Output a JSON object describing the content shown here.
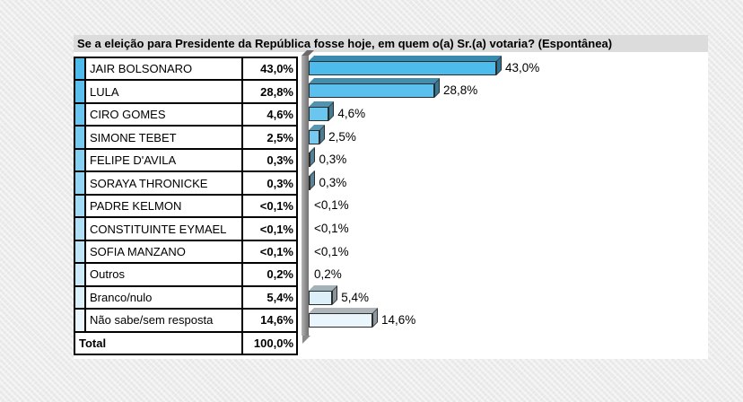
{
  "title": "Se a eleição para Presidente da República fosse hoje, em quem o(a) Sr.(a) votaria? (Espontânea)",
  "colors": {
    "background": "#ececec",
    "title_bar_bg": "#dcdcdc",
    "panel_bg": "#ffffff",
    "table_border": "#000000",
    "axis_gray": "#8e8e8e",
    "accent_first": "#4dbbeb",
    "accent_last": "#eaf5fc"
  },
  "table": {
    "rows": [
      {
        "label": "JAIR BOLSONARO",
        "value": "43,0%",
        "color": "#4dbbeb"
      },
      {
        "label": "LULA",
        "value": "28,8%",
        "color": "#5bc0ed"
      },
      {
        "label": "CIRO GOMES",
        "value": "4,6%",
        "color": "#6ac6ee"
      },
      {
        "label": "SIMONE TEBET",
        "value": "2,5%",
        "color": "#78cbf0"
      },
      {
        "label": "FELIPE D'AVILA",
        "value": "0,3%",
        "color": "#86d0f1"
      },
      {
        "label": "SORAYA THRONICKE",
        "value": "0,3%",
        "color": "#94d5f3"
      },
      {
        "label": "PADRE KELMON",
        "value": "<0,1%",
        "color": "#a3dbf4"
      },
      {
        "label": "CONSTITUINTE EYMAEL",
        "value": "<0,1%",
        "color": "#b1e0f6"
      },
      {
        "label": "SOFIA MANZANO",
        "value": "<0,1%",
        "color": "#bfe5f7"
      },
      {
        "label": "Outros",
        "value": "0,2%",
        "color": "#cdeaf9"
      },
      {
        "label": "Branco/nulo",
        "value": "5,4%",
        "color": "#dcf0fa"
      },
      {
        "label": "Não sabe/sem resposta",
        "value": "14,6%",
        "color": "#eaf5fc"
      }
    ],
    "total": {
      "label": "Total",
      "value": "100,0%"
    }
  },
  "chart_data": {
    "type": "bar",
    "orientation": "horizontal",
    "style": "3d-bars",
    "title": "Se a eleição para Presidente da República fosse hoje, em quem o(a) Sr.(a) votaria? (Espontânea)",
    "unit": "%",
    "xlim": [
      0,
      45
    ],
    "grid": false,
    "legend": false,
    "categories": [
      "JAIR BOLSONARO",
      "LULA",
      "CIRO GOMES",
      "SIMONE TEBET",
      "FELIPE D'AVILA",
      "SORAYA THRONICKE",
      "PADRE KELMON",
      "CONSTITUINTE EYMAEL",
      "SOFIA MANZANO",
      "Outros",
      "Branco/nulo",
      "Não sabe/sem resposta"
    ],
    "values": [
      43.0,
      28.8,
      4.6,
      2.5,
      0.3,
      0.3,
      0.05,
      0.05,
      0.05,
      0.2,
      5.4,
      14.6
    ],
    "value_labels": [
      "43,0%",
      "28,8%",
      "4,6%",
      "2,5%",
      "0,3%",
      "0,3%",
      "<0,1%",
      "<0,1%",
      "<0,1%",
      "0,2%",
      "5,4%",
      "14,6%"
    ],
    "bar_colors": [
      "#4dbbeb",
      "#5bc0ed",
      "#6ac6ee",
      "#78cbf0",
      "#86d0f1",
      "#94d5f3",
      "#a3dbf4",
      "#b1e0f6",
      "#bfe5f7",
      "#cdeaf9",
      "#dcf0fa",
      "#eaf5fc"
    ],
    "total": {
      "label": "Total",
      "value_label": "100,0%",
      "value": 100.0
    }
  }
}
